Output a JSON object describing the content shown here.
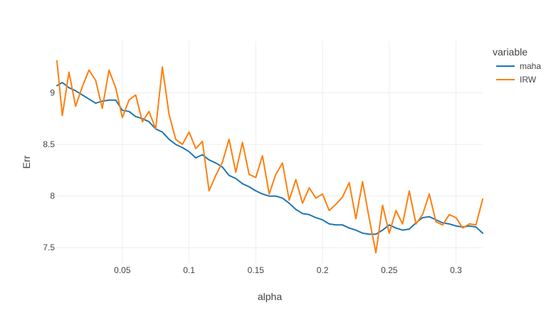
{
  "chart_data": {
    "type": "line",
    "xlabel": "alpha",
    "ylabel": "Err",
    "xlim": [
      0.001,
      0.32
    ],
    "ylim": [
      7.35,
      9.5
    ],
    "x_ticks": [
      0.05,
      0.1,
      0.15,
      0.2,
      0.25,
      0.3
    ],
    "x_tick_labels": [
      "0.05",
      "0.1",
      "0.15",
      "0.2",
      "0.25",
      "0.3"
    ],
    "y_ticks": [
      7.5,
      8,
      8.5,
      9
    ],
    "y_tick_labels": [
      "7.5",
      "8",
      "8.5",
      "9"
    ],
    "grid": true,
    "legend_title": "variable",
    "legend_position": "top-right",
    "x": [
      0.001,
      0.005,
      0.01,
      0.015,
      0.02,
      0.025,
      0.03,
      0.035,
      0.04,
      0.045,
      0.05,
      0.055,
      0.06,
      0.065,
      0.07,
      0.075,
      0.08,
      0.085,
      0.09,
      0.095,
      0.1,
      0.105,
      0.11,
      0.115,
      0.12,
      0.125,
      0.13,
      0.135,
      0.14,
      0.145,
      0.15,
      0.155,
      0.16,
      0.165,
      0.17,
      0.175,
      0.18,
      0.185,
      0.19,
      0.195,
      0.2,
      0.205,
      0.21,
      0.215,
      0.22,
      0.225,
      0.23,
      0.235,
      0.24,
      0.245,
      0.25,
      0.255,
      0.26,
      0.265,
      0.27,
      0.275,
      0.28,
      0.285,
      0.29,
      0.295,
      0.3,
      0.305,
      0.31,
      0.315,
      0.32
    ],
    "series": [
      {
        "name": "maha",
        "color": "#1f77b4",
        "values": [
          9.07,
          9.1,
          9.05,
          9.02,
          8.98,
          8.94,
          8.9,
          8.92,
          8.93,
          8.93,
          8.83,
          8.82,
          8.77,
          8.75,
          8.72,
          8.65,
          8.62,
          8.55,
          8.5,
          8.47,
          8.43,
          8.37,
          8.4,
          8.35,
          8.32,
          8.28,
          8.2,
          8.17,
          8.12,
          8.09,
          8.05,
          8.02,
          8.0,
          8.0,
          7.98,
          7.93,
          7.87,
          7.83,
          7.82,
          7.79,
          7.77,
          7.73,
          7.72,
          7.72,
          7.69,
          7.67,
          7.64,
          7.63,
          7.63,
          7.67,
          7.72,
          7.69,
          7.67,
          7.68,
          7.74,
          7.79,
          7.8,
          7.77,
          7.74,
          7.73,
          7.71,
          7.7,
          7.71,
          7.7,
          7.64
        ]
      },
      {
        "name": "IRW",
        "color": "#ff7f0e",
        "values": [
          9.31,
          8.78,
          9.2,
          8.87,
          9.06,
          9.22,
          9.12,
          8.85,
          9.22,
          9.05,
          8.76,
          8.93,
          8.98,
          8.72,
          8.82,
          8.65,
          9.25,
          8.79,
          8.55,
          8.5,
          8.62,
          8.46,
          8.53,
          8.05,
          8.2,
          8.33,
          8.55,
          8.23,
          8.52,
          8.21,
          8.18,
          8.39,
          8.02,
          8.21,
          8.32,
          7.96,
          8.16,
          7.93,
          8.08,
          7.98,
          8.02,
          7.86,
          7.92,
          7.99,
          8.13,
          7.78,
          8.14,
          7.78,
          7.45,
          7.91,
          7.64,
          7.86,
          7.73,
          8.05,
          7.73,
          7.82,
          8.02,
          7.75,
          7.72,
          7.82,
          7.79,
          7.69,
          7.73,
          7.72,
          7.97
        ]
      }
    ]
  }
}
